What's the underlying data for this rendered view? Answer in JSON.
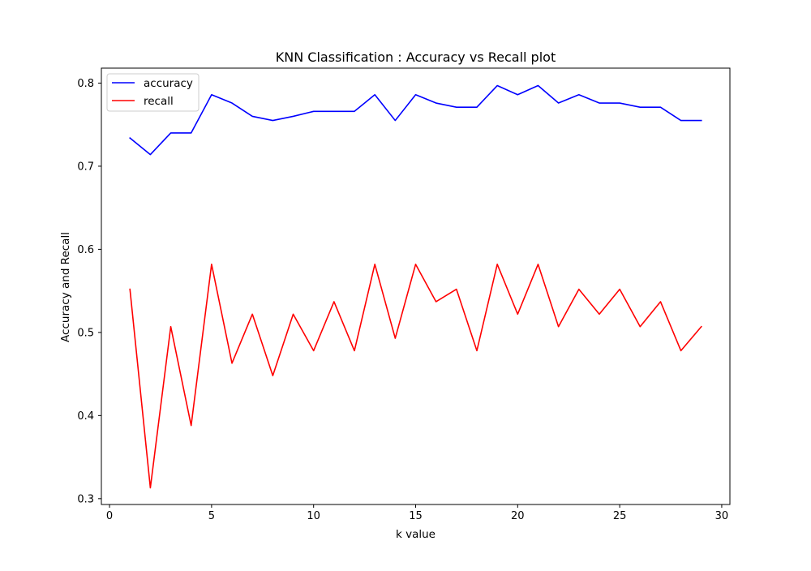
{
  "chart_data": {
    "type": "line",
    "title": "KNN Classification : Accuracy vs Recall plot",
    "xlabel": "k value",
    "ylabel": "Accuracy and Recall",
    "xlim": [
      -0.4,
      30.4
    ],
    "ylim": [
      0.293,
      0.818
    ],
    "x_ticks": [
      0,
      5,
      10,
      15,
      20,
      25,
      30
    ],
    "x_tick_labels": [
      "0",
      "5",
      "10",
      "15",
      "20",
      "25",
      "30"
    ],
    "y_ticks": [
      0.3,
      0.4,
      0.5,
      0.6,
      0.7,
      0.8
    ],
    "y_tick_labels": [
      "0.3",
      "0.4",
      "0.5",
      "0.6",
      "0.7",
      "0.8"
    ],
    "grid": false,
    "legend_position": "upper-left",
    "x": [
      1,
      2,
      3,
      4,
      5,
      6,
      7,
      8,
      9,
      10,
      11,
      12,
      13,
      14,
      15,
      16,
      17,
      18,
      19,
      20,
      21,
      22,
      23,
      24,
      25,
      26,
      27,
      28,
      29
    ],
    "series": [
      {
        "name": "accuracy",
        "color": "#0000ff",
        "values": [
          0.734,
          0.714,
          0.74,
          0.74,
          0.786,
          0.776,
          0.76,
          0.755,
          0.76,
          0.766,
          0.766,
          0.766,
          0.786,
          0.755,
          0.786,
          0.776,
          0.771,
          0.771,
          0.797,
          0.786,
          0.797,
          0.776,
          0.786,
          0.776,
          0.776,
          0.771,
          0.771,
          0.755,
          0.755
        ]
      },
      {
        "name": "recall",
        "color": "#ff0000",
        "values": [
          0.552,
          0.313,
          0.507,
          0.388,
          0.582,
          0.463,
          0.522,
          0.448,
          0.522,
          0.478,
          0.537,
          0.478,
          0.582,
          0.493,
          0.582,
          0.537,
          0.552,
          0.478,
          0.582,
          0.522,
          0.582,
          0.507,
          0.552,
          0.522,
          0.552,
          0.507,
          0.537,
          0.478,
          0.507
        ]
      }
    ]
  }
}
